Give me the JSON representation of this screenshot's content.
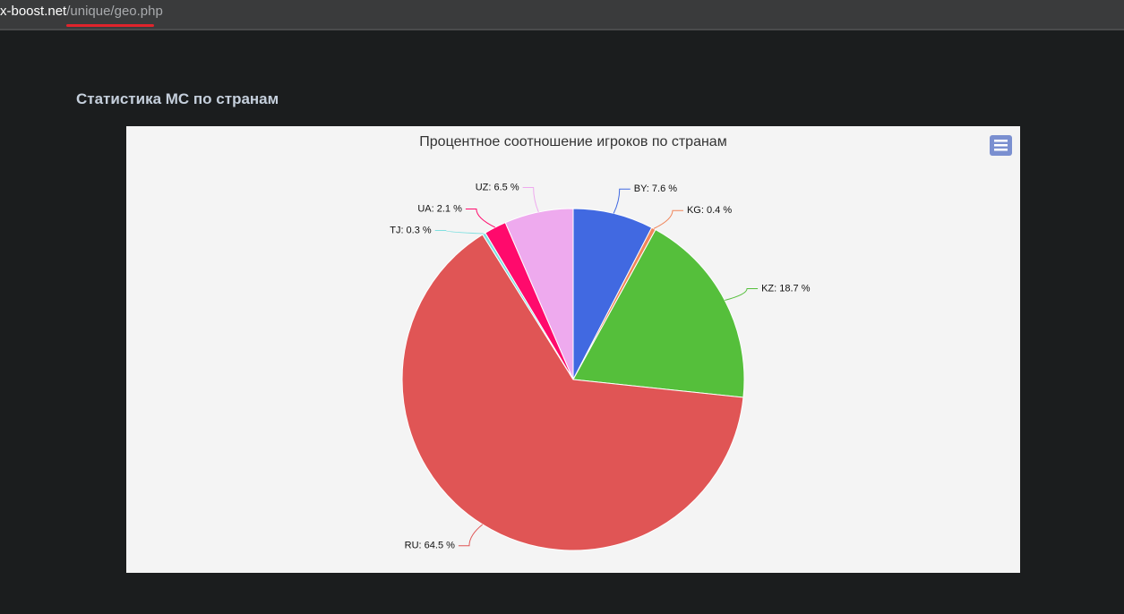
{
  "address_bar": {
    "host": "x-boost.net",
    "path": "/unique/geo.php"
  },
  "heading": "Статистика МС по странам",
  "chart_data": {
    "type": "pie",
    "title": "Процентное соотношение игроков по странам",
    "categories": [
      "BY",
      "KG",
      "KZ",
      "RU",
      "TJ",
      "UA",
      "UZ"
    ],
    "values": [
      7.6,
      0.4,
      18.7,
      64.5,
      0.3,
      2.1,
      6.5
    ],
    "value_labels": [
      "BY: 7.6 %",
      "KG: 0.4 %",
      "KZ: 18.7 %",
      "RU: 64.5 %",
      "TJ: 0.3 %",
      "UA: 2.1 %",
      "UZ: 6.5 %"
    ],
    "colors": [
      "#4169e1",
      "#f0855a",
      "#55bf3b",
      "#e05555",
      "#80e0e0",
      "#ff0a6c",
      "#eeaaee"
    ]
  }
}
